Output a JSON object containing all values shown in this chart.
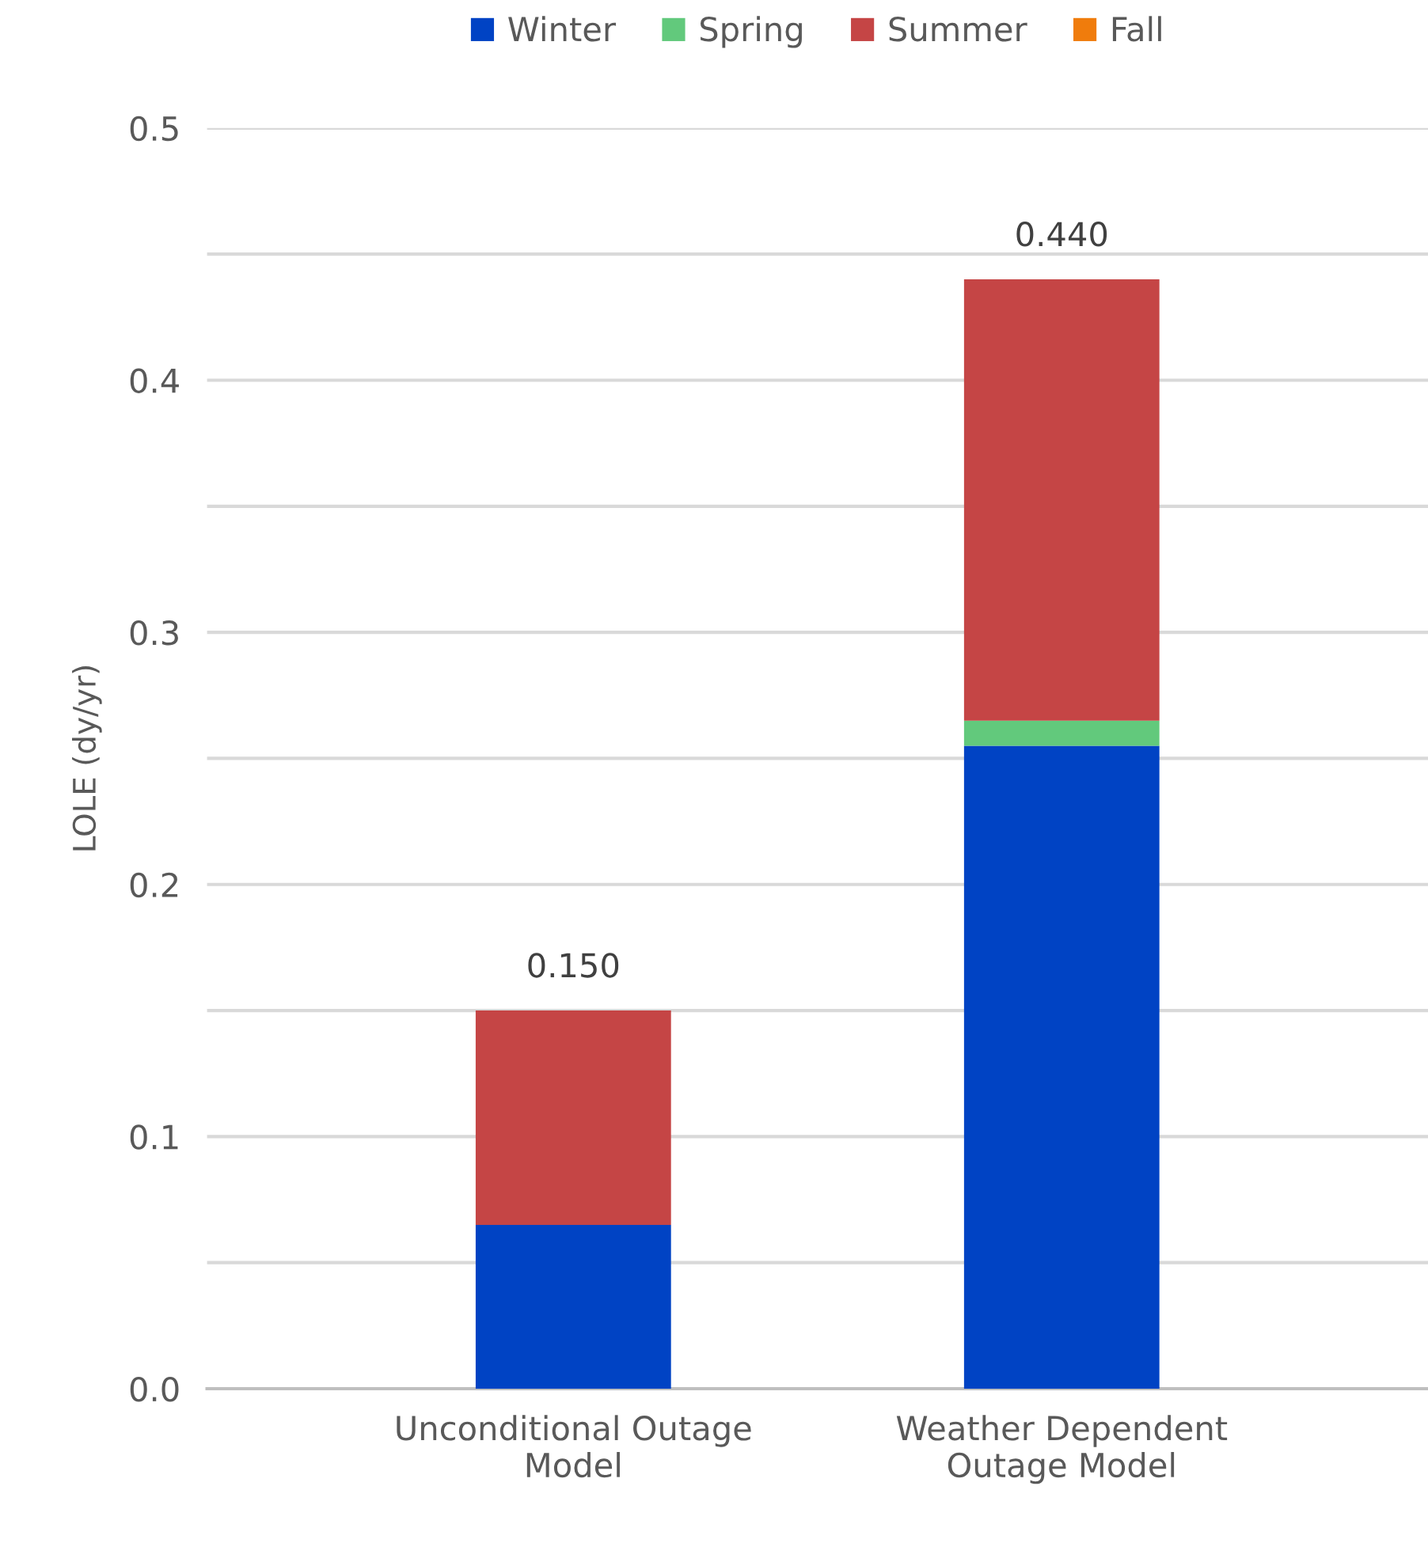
{
  "chart_data": {
    "type": "bar",
    "stacked": true,
    "ylabel": "LOLE (dy/yr)",
    "categories": [
      "Unconditional Outage\nModel",
      "Weather Dependent\nOutage Model"
    ],
    "series": [
      {
        "name": "Winter",
        "color": "#0043c4",
        "values": [
          0.065,
          0.255
        ]
      },
      {
        "name": "Spring",
        "color": "#62c97c",
        "values": [
          0,
          0.01
        ]
      },
      {
        "name": "Summer",
        "color": "#c54545",
        "values": [
          0.085,
          0.175
        ]
      },
      {
        "name": "Fall",
        "color": "#f07c0c",
        "values": [
          0,
          0
        ]
      }
    ],
    "totals": [
      "0.150",
      "0.440"
    ],
    "ylim": [
      0,
      0.5
    ],
    "yticks": [
      {
        "value": 0,
        "label": "0.0"
      },
      {
        "value": 0.05,
        "label": null
      },
      0.1,
      {
        "value": 0.15,
        "label": null
      },
      0.2,
      {
        "value": 0.25,
        "label": null
      },
      0.3,
      {
        "value": 0.35,
        "label": null
      },
      0.4,
      {
        "value": 0.45,
        "label": null
      },
      0.5
    ],
    "grid": "y",
    "legend": "top"
  }
}
